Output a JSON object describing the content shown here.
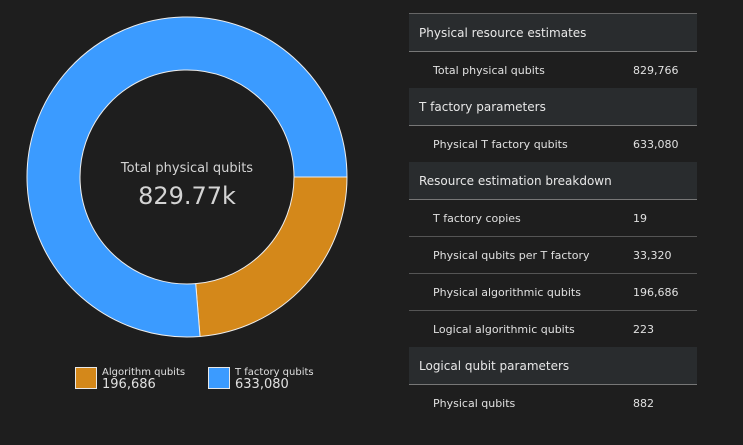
{
  "chart": {
    "center_label": "Total physical qubits",
    "center_value": "829.77k",
    "segments": [
      {
        "label": "Algorithm qubits",
        "value": 196686,
        "display": "196,686",
        "color": "#d4881a"
      },
      {
        "label": "T factory qubits",
        "value": 633080,
        "display": "633,080",
        "color": "#3b9bff"
      }
    ]
  },
  "sections": [
    {
      "title": "Physical resource estimates",
      "rows": [
        {
          "k": "Total physical qubits",
          "v": "829,766"
        }
      ]
    },
    {
      "title": "T factory parameters",
      "rows": [
        {
          "k": "Physical T factory qubits",
          "v": "633,080"
        }
      ]
    },
    {
      "title": "Resource estimation breakdown",
      "rows": [
        {
          "k": "T factory copies",
          "v": "19"
        },
        {
          "k": "Physical qubits per T factory",
          "v": "33,320"
        },
        {
          "k": "Physical algorithmic qubits",
          "v": "196,686"
        },
        {
          "k": "Logical algorithmic qubits",
          "v": "223"
        }
      ]
    },
    {
      "title": "Logical qubit parameters",
      "rows": [
        {
          "k": "Physical qubits",
          "v": "882"
        }
      ]
    }
  ]
}
